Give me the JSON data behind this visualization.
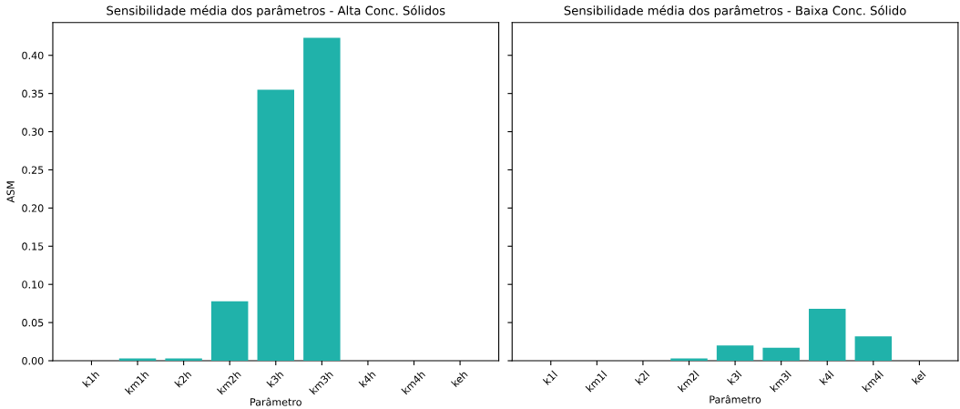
{
  "chart_data": [
    {
      "type": "bar",
      "title": "Sensibilidade média dos parâmetros - Alta Conc. Sólidos",
      "xlabel": "Parâmetro",
      "ylabel": "ASM",
      "categories": [
        "k1h",
        "km1h",
        "k2h",
        "km2h",
        "k3h",
        "km3h",
        "k4h",
        "km4h",
        "keh"
      ],
      "values": [
        0,
        0.003,
        0.003,
        0.078,
        0.355,
        0.423,
        0,
        0,
        0
      ],
      "color": "#20b2aa",
      "ylim": [
        0,
        0.443
      ],
      "yticks": [
        {
          "value": 0,
          "label": "0.00"
        },
        0.05,
        {
          "value": 0.1,
          "label": "0.10"
        },
        0.15,
        {
          "value": 0.2,
          "label": "0.20"
        },
        0.25,
        {
          "value": 0.3,
          "label": "0.30"
        },
        0.35,
        {
          "value": 0.4,
          "label": "0.40"
        }
      ]
    },
    {
      "type": "bar",
      "title": "Sensibilidade média dos parâmetros - Baixa Conc. Sólido",
      "xlabel": "Parâmetro",
      "categories": [
        "k1l",
        "km1l",
        "k2l",
        "km2l",
        "k3l",
        "km3l",
        "k4l",
        "km4l",
        "kel"
      ],
      "values": [
        0,
        0,
        0,
        0.003,
        0.02,
        0.017,
        0.068,
        0.032,
        0
      ],
      "color": "#20b2aa",
      "ylim": [
        0,
        0.443
      ],
      "yticks": [
        {
          "value": 0,
          "label": null
        },
        {
          "value": 0.05,
          "label": null
        },
        {
          "value": 0.1,
          "label": null
        },
        {
          "value": 0.15,
          "label": null
        },
        {
          "value": 0.2,
          "label": null
        },
        {
          "value": 0.25,
          "label": null
        },
        {
          "value": 0.3,
          "label": null
        },
        {
          "value": 0.35,
          "label": null
        },
        {
          "value": 0.4,
          "label": null
        }
      ],
      "tick_labels": "x"
    }
  ]
}
